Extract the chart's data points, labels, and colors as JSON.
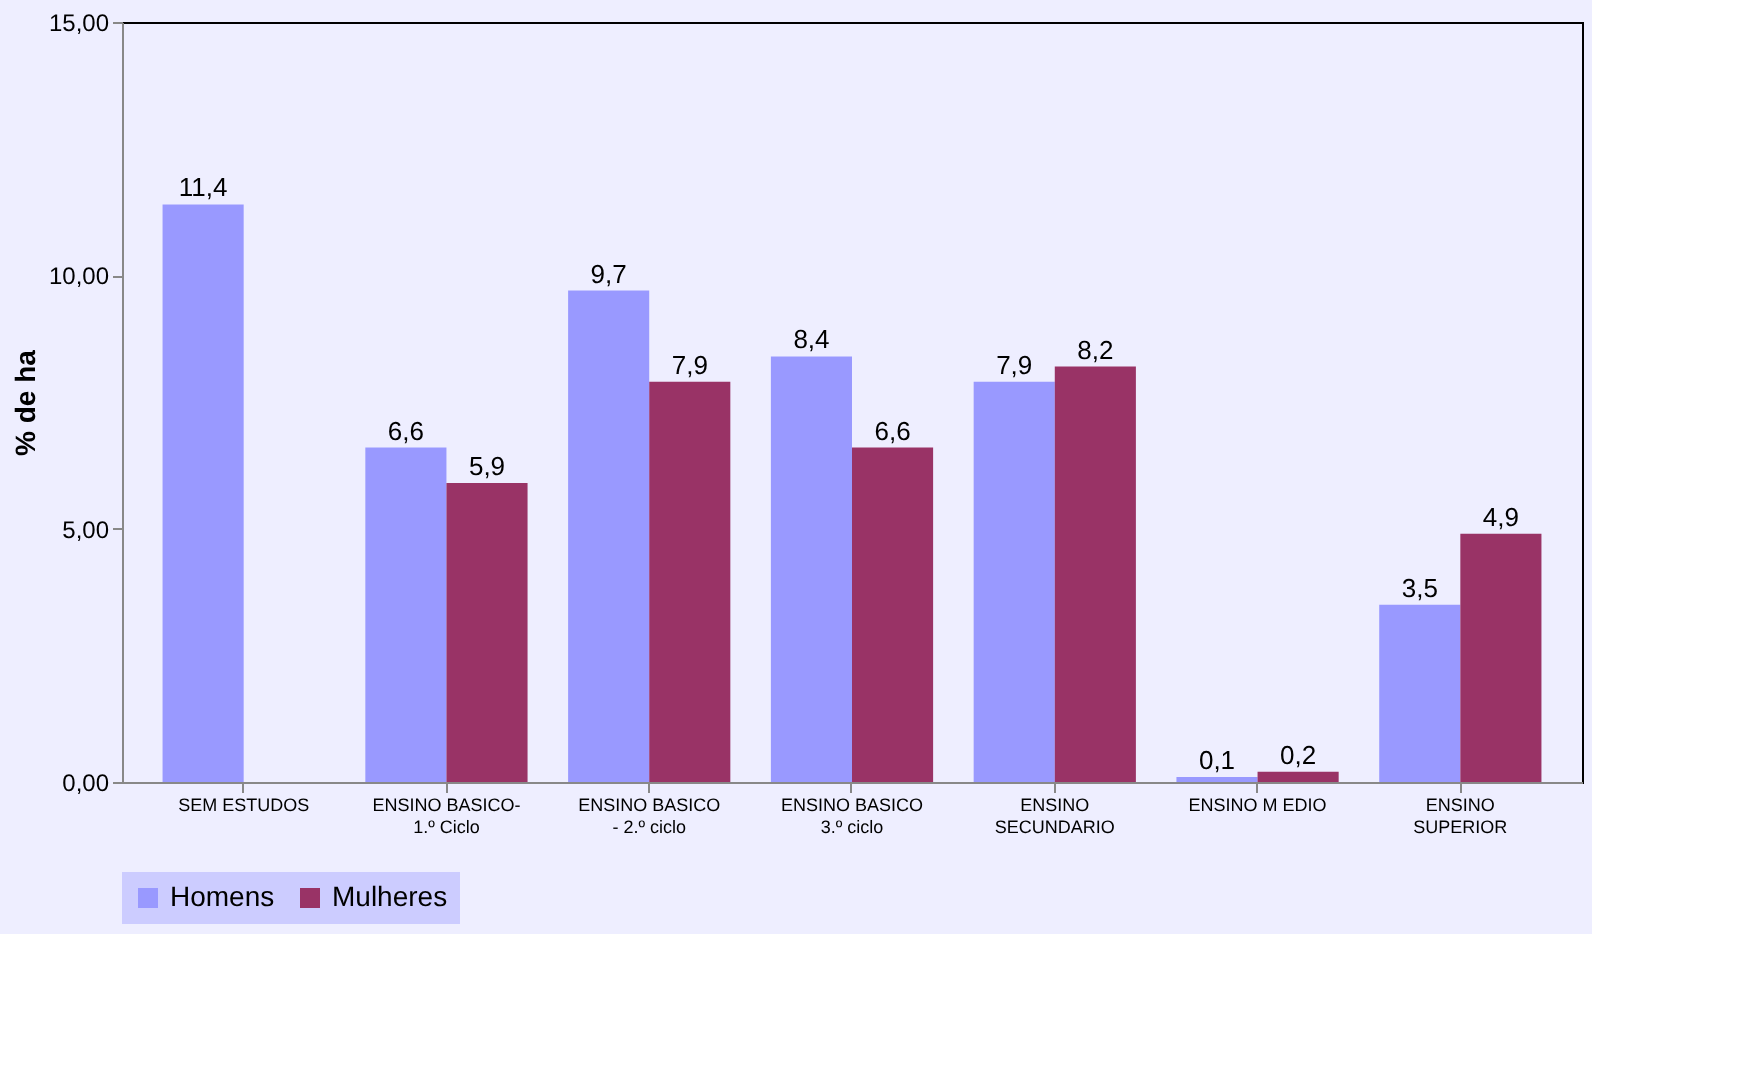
{
  "chart_data": {
    "type": "bar",
    "ylabel": "% de ha",
    "categories": [
      "SEM  ESTUDOS",
      "ENSINO BASICO- 1.º Ciclo",
      "ENSINO BASICO - 2.º ciclo",
      "ENSINO BASICO 3.º ciclo",
      "ENSINO SECUNDARIO",
      "ENSINO M EDIO",
      "ENSINO SUPERIOR"
    ],
    "series": [
      {
        "name": "Homens",
        "color": "#9999ff",
        "values": [
          11.4,
          6.6,
          9.7,
          8.4,
          7.9,
          0.1,
          3.5
        ],
        "value_labels": [
          "11,4",
          "6,6",
          "9,7",
          "8,4",
          "7,9",
          "0,1",
          "3,5"
        ]
      },
      {
        "name": "Mulheres",
        "color": "#993366",
        "values": [
          null,
          5.9,
          7.9,
          6.6,
          8.2,
          0.2,
          4.9
        ],
        "value_labels": [
          null,
          "5,9",
          "7,9",
          "6,6",
          "8,2",
          "0,2",
          "4,9"
        ]
      }
    ],
    "ylim": [
      0,
      15
    ],
    "yticks": [
      {
        "value": 0,
        "label": "0,00"
      },
      {
        "value": 5,
        "label": "5,00"
      },
      {
        "value": 10,
        "label": "10,00"
      },
      {
        "value": 15,
        "label": "15,00"
      }
    ],
    "legend": "bottom",
    "grid": false
  }
}
